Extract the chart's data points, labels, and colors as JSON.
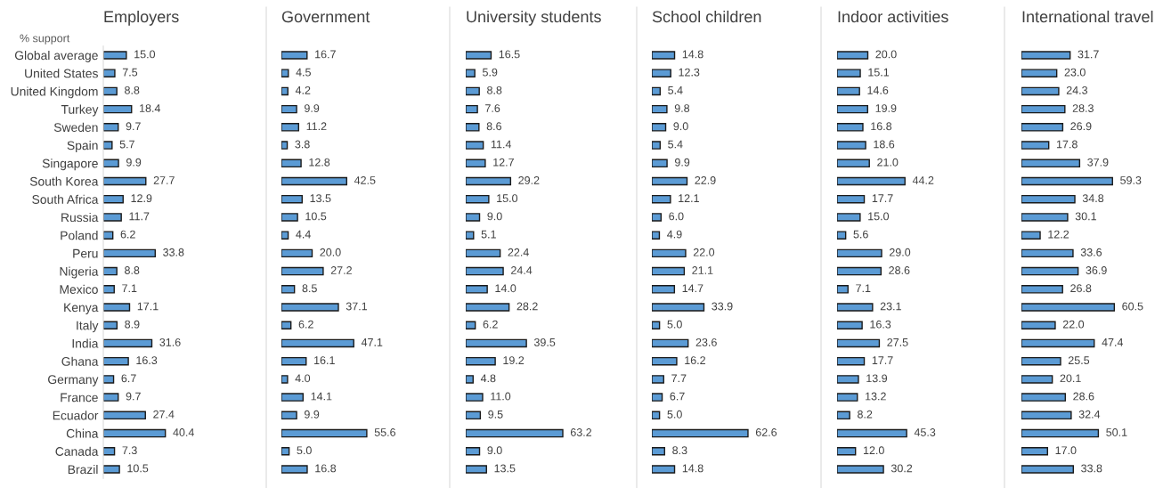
{
  "chart_data": [
    {
      "type": "bar",
      "orientation": "horizontal",
      "title": "Employers",
      "annotations": [
        "% support"
      ],
      "tick_labels": "y",
      "color": "#5b9bd5",
      "categories": [
        "Global average",
        "United States",
        "United Kingdom",
        "Turkey",
        "Sweden",
        "Spain",
        "Singapore",
        "South Korea",
        "South Africa",
        "Russia",
        "Poland",
        "Peru",
        "Nigeria",
        "Mexico",
        "Kenya",
        "Italy",
        "India",
        "Ghana",
        "Germany",
        "France",
        "Ecuador",
        "China",
        "Canada",
        "Brazil"
      ],
      "values": [
        15.0,
        7.5,
        8.8,
        18.4,
        9.7,
        5.7,
        9.9,
        27.7,
        12.9,
        11.7,
        6.2,
        33.8,
        8.8,
        7.1,
        17.1,
        8.9,
        31.6,
        16.3,
        6.7,
        9.7,
        27.4,
        40.4,
        7.3,
        10.5
      ],
      "value_labels": [
        "15.0",
        "7.5",
        "8.8",
        "18.4",
        "9.7",
        "5.7",
        "9.9",
        "27.7",
        "12.9",
        "11.7",
        "6.2",
        "33.8",
        "8.8",
        "7.1",
        "17.1",
        "8.9",
        "31.6",
        "16.3",
        "6.7",
        "9.7",
        "27.4",
        "40.4",
        "7.3",
        "10.5"
      ]
    },
    {
      "type": "bar",
      "orientation": "horizontal",
      "title": "Government",
      "tick_labels": false,
      "color": "#5b9bd5",
      "categories": [
        null,
        null,
        null,
        null,
        null,
        null,
        null,
        null,
        null,
        null,
        null,
        null,
        null,
        null,
        null,
        null,
        null,
        null,
        null,
        null,
        null,
        null,
        null,
        null
      ],
      "values": [
        16.7,
        4.5,
        4.2,
        9.9,
        11.2,
        3.8,
        12.8,
        42.5,
        13.5,
        10.5,
        4.4,
        20.0,
        27.2,
        8.5,
        37.1,
        6.2,
        47.1,
        16.1,
        4.0,
        14.1,
        9.9,
        55.6,
        5.0,
        16.8
      ],
      "value_labels": [
        "16.7",
        "4.5",
        "4.2",
        "9.9",
        "11.2",
        "3.8",
        "12.8",
        "42.5",
        "13.5",
        "10.5",
        "4.4",
        "20.0",
        "27.2",
        "8.5",
        "37.1",
        "6.2",
        "47.1",
        "16.1",
        "4.0",
        "14.1",
        "9.9",
        "55.6",
        "5.0",
        "16.8"
      ]
    },
    {
      "type": "bar",
      "orientation": "horizontal",
      "title": "University students",
      "tick_labels": false,
      "color": "#5b9bd5",
      "categories": [
        null,
        null,
        null,
        null,
        null,
        null,
        null,
        null,
        null,
        null,
        null,
        null,
        null,
        null,
        null,
        null,
        null,
        null,
        null,
        null,
        null,
        null,
        null,
        null
      ],
      "values": [
        16.5,
        5.9,
        8.8,
        7.6,
        8.6,
        11.4,
        12.7,
        29.2,
        15.0,
        9.0,
        5.1,
        22.4,
        24.4,
        14.0,
        28.2,
        6.2,
        39.5,
        19.2,
        4.8,
        11.0,
        9.5,
        63.2,
        9.0,
        13.5
      ],
      "value_labels": [
        "16.5",
        "5.9",
        "8.8",
        "7.6",
        "8.6",
        "11.4",
        "12.7",
        "29.2",
        "15.0",
        "9.0",
        "5.1",
        "22.4",
        "24.4",
        "14.0",
        "28.2",
        "6.2",
        "39.5",
        "19.2",
        "4.8",
        "11.0",
        "9.5",
        "63.2",
        "9.0",
        "13.5"
      ]
    },
    {
      "type": "bar",
      "orientation": "horizontal",
      "title": "School children",
      "tick_labels": false,
      "color": "#5b9bd5",
      "categories": [
        null,
        null,
        null,
        null,
        null,
        null,
        null,
        null,
        null,
        null,
        null,
        null,
        null,
        null,
        null,
        null,
        null,
        null,
        null,
        null,
        null,
        null,
        null,
        null
      ],
      "values": [
        14.8,
        12.3,
        5.4,
        9.8,
        9.0,
        5.4,
        9.9,
        22.9,
        12.1,
        6.0,
        4.9,
        22.0,
        21.1,
        14.7,
        33.9,
        5.0,
        23.6,
        16.2,
        7.7,
        6.7,
        5.0,
        62.6,
        8.3,
        14.8
      ],
      "value_labels": [
        "14.8",
        "12.3",
        "5.4",
        "9.8",
        "9.0",
        "5.4",
        "9.9",
        "22.9",
        "12.1",
        "6.0",
        "4.9",
        "22.0",
        "21.1",
        "14.7",
        "33.9",
        "5.0",
        "23.6",
        "16.2",
        "7.7",
        "6.7",
        "5.0",
        "62.6",
        "8.3",
        "14.8"
      ]
    },
    {
      "type": "bar",
      "orientation": "horizontal",
      "title": "Indoor activities",
      "tick_labels": false,
      "color": "#5b9bd5",
      "categories": [
        null,
        null,
        null,
        null,
        null,
        null,
        null,
        null,
        null,
        null,
        null,
        null,
        null,
        null,
        null,
        null,
        null,
        null,
        null,
        null,
        null,
        null,
        null,
        null
      ],
      "values": [
        20.0,
        15.1,
        14.6,
        19.9,
        16.8,
        18.6,
        21.0,
        44.2,
        17.7,
        15.0,
        5.6,
        29.0,
        28.6,
        7.1,
        23.1,
        16.3,
        27.5,
        17.7,
        13.9,
        13.2,
        8.2,
        45.3,
        12.0,
        30.2
      ],
      "value_labels": [
        "20.0",
        "15.1",
        "14.6",
        "19.9",
        "16.8",
        "18.6",
        "21.0",
        "44.2",
        "17.7",
        "15.0",
        "5.6",
        "29.0",
        "28.6",
        "7.1",
        "23.1",
        "16.3",
        "27.5",
        "17.7",
        "13.9",
        "13.2",
        "8.2",
        "45.3",
        "12.0",
        "30.2"
      ]
    },
    {
      "type": "bar",
      "orientation": "horizontal",
      "title": "International travel",
      "tick_labels": false,
      "color": "#5b9bd5",
      "categories": [
        null,
        null,
        null,
        null,
        null,
        null,
        null,
        null,
        null,
        null,
        null,
        null,
        null,
        null,
        null,
        null,
        null,
        null,
        null,
        null,
        null,
        null,
        null,
        null
      ],
      "values": [
        31.7,
        23.0,
        24.3,
        28.3,
        26.9,
        17.8,
        37.9,
        59.3,
        34.8,
        30.1,
        12.2,
        33.6,
        36.9,
        26.8,
        60.5,
        22.0,
        47.4,
        25.5,
        20.1,
        28.6,
        32.4,
        50.1,
        17.0,
        33.8
      ],
      "value_labels": [
        "31.7",
        "23.0",
        "24.3",
        "28.3",
        "26.9",
        "17.8",
        "37.9",
        "59.3",
        "34.8",
        "30.1",
        "12.2",
        "33.6",
        "36.9",
        "26.8",
        "60.5",
        "22.0",
        "47.4",
        "25.5",
        "20.1",
        "28.6",
        "32.4",
        "50.1",
        "17.0",
        "33.8"
      ]
    }
  ]
}
